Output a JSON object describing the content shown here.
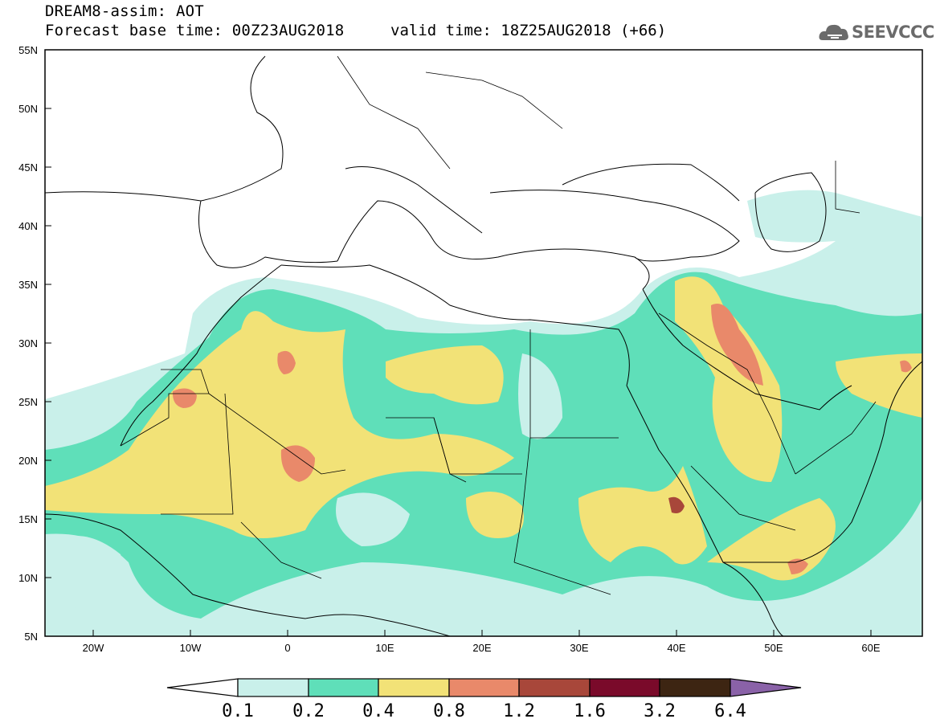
{
  "header": {
    "title": "DREAM8-assim: AOT",
    "base_time": "Forecast base time: 00Z23AUG2018",
    "valid_time": "valid time: 18Z25AUG2018 (+66)"
  },
  "logo": {
    "text": "SEEVCCC",
    "icon": "cloud-icon"
  },
  "map": {
    "lon_range": [
      -25,
      65
    ],
    "lat_range": [
      5,
      55
    ],
    "lat_labels": [
      "55N",
      "50N",
      "45N",
      "40N",
      "35N",
      "30N",
      "25N",
      "20N",
      "15N",
      "10N",
      "5N"
    ],
    "lon_labels": [
      "20W",
      "10W",
      "0",
      "10E",
      "20E",
      "30E",
      "40E",
      "50E",
      "60E"
    ]
  },
  "colorbar": {
    "labels": [
      "0.1",
      "0.2",
      "0.4",
      "0.8",
      "1.2",
      "1.6",
      "3.2",
      "6.4"
    ],
    "colors": [
      "#c9f0ea",
      "#5fdfb9",
      "#f2e277",
      "#e9896a",
      "#a8473a",
      "#7a0a2a",
      "#3d2512",
      "#8a62a8"
    ]
  }
}
